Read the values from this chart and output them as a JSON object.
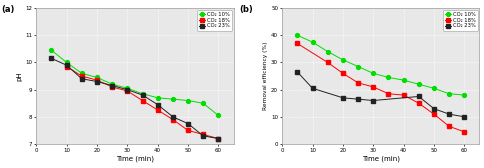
{
  "time": [
    5,
    10,
    15,
    20,
    25,
    30,
    35,
    40,
    45,
    50,
    55,
    60
  ],
  "pH_green": [
    10.45,
    10.0,
    9.6,
    9.45,
    9.2,
    9.05,
    8.85,
    8.7,
    8.65,
    8.6,
    8.5,
    8.05
  ],
  "pH_red": [
    null,
    9.85,
    9.5,
    9.35,
    9.1,
    8.95,
    8.6,
    8.25,
    7.9,
    7.5,
    7.35,
    7.2
  ],
  "pH_black": [
    10.15,
    9.9,
    9.4,
    9.3,
    9.15,
    9.0,
    8.8,
    8.45,
    8.0,
    7.75,
    7.3,
    7.2
  ],
  "eff_green": [
    40.0,
    37.5,
    34.0,
    31.0,
    28.5,
    26.0,
    24.5,
    23.5,
    22.0,
    20.5,
    18.5,
    18.0
  ],
  "eff_red": [
    37.0,
    null,
    30.0,
    26.0,
    22.5,
    21.0,
    18.5,
    18.0,
    15.0,
    11.0,
    6.5,
    4.5
  ],
  "eff_black": [
    26.5,
    20.5,
    null,
    17.0,
    16.5,
    16.0,
    null,
    null,
    17.5,
    13.0,
    11.0,
    10.0
  ],
  "panel_a_label": "(a)",
  "panel_b_label": "(b)",
  "ylabel_a": "pH",
  "ylabel_b": "Removal efficiency (%)",
  "xlabel": "Time (min)",
  "ylim_a": [
    7,
    12
  ],
  "ylim_b": [
    0,
    50
  ],
  "yticks_a": [
    7,
    8,
    9,
    10,
    11,
    12
  ],
  "yticks_b": [
    0,
    10,
    20,
    30,
    40,
    50
  ],
  "xticks": [
    0,
    10,
    20,
    30,
    40,
    50,
    60
  ],
  "legend_labels": [
    "CO₂ 10%",
    "CO₂ 18%",
    "CO₂ 23%"
  ],
  "colors": [
    "#00dd00",
    "#ff0000",
    "#222222"
  ],
  "background": "#e8e8e8",
  "grid_color": "#ffffff",
  "fig_width": 4.85,
  "fig_height": 1.68,
  "dpi": 100
}
